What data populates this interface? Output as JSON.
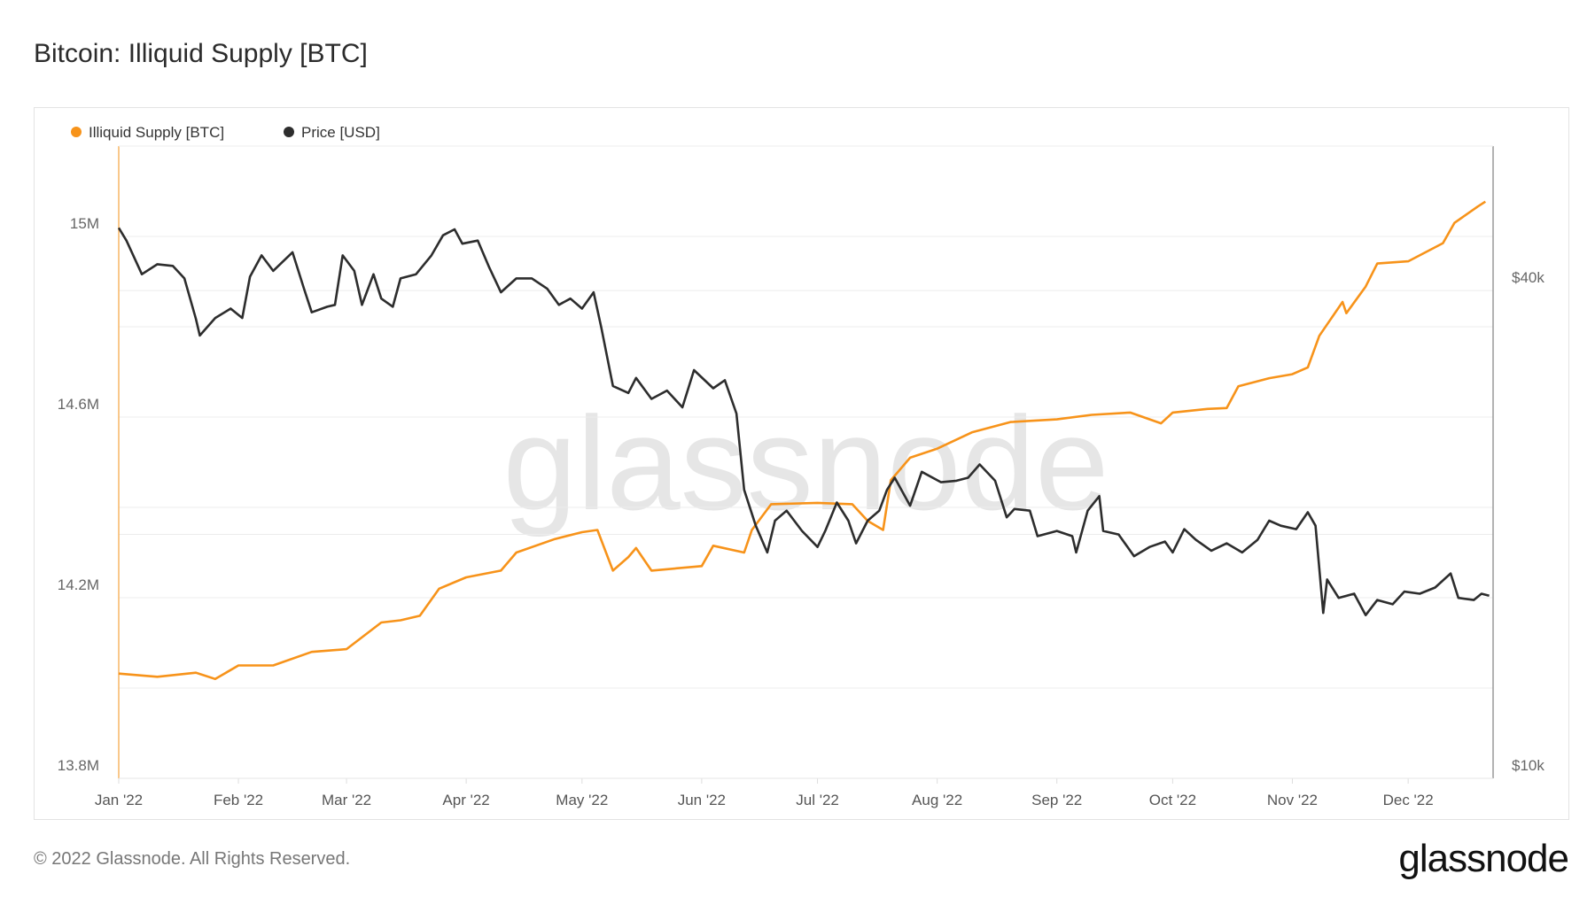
{
  "title": "Bitcoin: Illiquid Supply [BTC]",
  "footer": "© 2022 Glassnode. All Rights Reserved.",
  "logo": "glassnode",
  "watermark": "glassnode",
  "chart_data": {
    "type": "line",
    "title": "Bitcoin: Illiquid Supply [BTC]",
    "grid": true,
    "legend_placement": "top-left",
    "x_ticks": [
      "Jan '22",
      "Feb '22",
      "Mar '22",
      "Apr '22",
      "May '22",
      "Jun '22",
      "Jul '22",
      "Aug '22",
      "Sep '22",
      "Oct '22",
      "Nov '22",
      "Dec '22"
    ],
    "x_tick_dates": [
      "2022-01-01",
      "2022-02-01",
      "2022-03-01",
      "2022-04-01",
      "2022-05-01",
      "2022-06-01",
      "2022-07-01",
      "2022-08-01",
      "2022-09-01",
      "2022-10-01",
      "2022-11-01",
      "2022-12-01"
    ],
    "xlim": [
      "2022-01-01",
      "2022-12-23"
    ],
    "y_left": {
      "ticks": [
        "13.8M",
        "14.2M",
        "14.6M",
        "15M"
      ],
      "tick_values": [
        13800000,
        14200000,
        14600000,
        15000000
      ],
      "ylim": [
        13800000,
        15200000
      ],
      "grid_step": 200000,
      "scale": "linear"
    },
    "y_right": {
      "ticks": [
        "$10k",
        "$40k"
      ],
      "tick_values": [
        10000,
        40000
      ],
      "ylim": [
        10000,
        60300
      ],
      "grid_values": [
        20000,
        40000
      ],
      "scale": "log"
    },
    "series": [
      {
        "name": "Illiquid Supply [BTC]",
        "axis": "left",
        "color": "#f7931a",
        "points": [
          [
            "2022-01-01",
            14032000
          ],
          [
            "2022-01-11",
            14025000
          ],
          [
            "2022-01-21",
            14034000
          ],
          [
            "2022-01-26",
            14020000
          ],
          [
            "2022-02-01",
            14050000
          ],
          [
            "2022-02-10",
            14050000
          ],
          [
            "2022-02-20",
            14080000
          ],
          [
            "2022-03-01",
            14086000
          ],
          [
            "2022-03-10",
            14145000
          ],
          [
            "2022-03-15",
            14150000
          ],
          [
            "2022-03-20",
            14160000
          ],
          [
            "2022-03-25",
            14220000
          ],
          [
            "2022-04-01",
            14245000
          ],
          [
            "2022-04-10",
            14260000
          ],
          [
            "2022-04-14",
            14300000
          ],
          [
            "2022-04-24",
            14330000
          ],
          [
            "2022-05-01",
            14345000
          ],
          [
            "2022-05-05",
            14350000
          ],
          [
            "2022-05-09",
            14260000
          ],
          [
            "2022-05-13",
            14290000
          ],
          [
            "2022-05-15",
            14310000
          ],
          [
            "2022-05-19",
            14260000
          ],
          [
            "2022-06-01",
            14270000
          ],
          [
            "2022-06-04",
            14315000
          ],
          [
            "2022-06-12",
            14300000
          ],
          [
            "2022-06-14",
            14350000
          ],
          [
            "2022-06-19",
            14407000
          ],
          [
            "2022-07-01",
            14410000
          ],
          [
            "2022-07-10",
            14407000
          ],
          [
            "2022-07-14",
            14370000
          ],
          [
            "2022-07-18",
            14350000
          ],
          [
            "2022-07-20",
            14460000
          ],
          [
            "2022-07-25",
            14510000
          ],
          [
            "2022-08-01",
            14530000
          ],
          [
            "2022-08-10",
            14566000
          ],
          [
            "2022-08-20",
            14589000
          ],
          [
            "2022-09-01",
            14595000
          ],
          [
            "2022-09-10",
            14605000
          ],
          [
            "2022-09-20",
            14610000
          ],
          [
            "2022-09-28",
            14586000
          ],
          [
            "2022-10-01",
            14610000
          ],
          [
            "2022-10-10",
            14618000
          ],
          [
            "2022-10-15",
            14620000
          ],
          [
            "2022-10-18",
            14668000
          ],
          [
            "2022-10-26",
            14686000
          ],
          [
            "2022-11-01",
            14695000
          ],
          [
            "2022-11-05",
            14710000
          ],
          [
            "2022-11-08",
            14780000
          ],
          [
            "2022-11-14",
            14855000
          ],
          [
            "2022-11-15",
            14830000
          ],
          [
            "2022-11-20",
            14889000
          ],
          [
            "2022-11-23",
            14940000
          ],
          [
            "2022-12-01",
            14945000
          ],
          [
            "2022-12-10",
            14985000
          ],
          [
            "2022-12-13",
            15030000
          ],
          [
            "2022-12-19",
            15066000
          ],
          [
            "2022-12-21",
            15077000
          ]
        ]
      },
      {
        "name": "Price [USD]",
        "axis": "right",
        "color": "#2d2d2d",
        "points": [
          [
            "2022-01-01",
            47800
          ],
          [
            "2022-01-03",
            46100
          ],
          [
            "2022-01-07",
            41900
          ],
          [
            "2022-01-11",
            43100
          ],
          [
            "2022-01-15",
            42900
          ],
          [
            "2022-01-18",
            41400
          ],
          [
            "2022-01-21",
            36900
          ],
          [
            "2022-01-22",
            35200
          ],
          [
            "2022-01-26",
            37000
          ],
          [
            "2022-01-30",
            38000
          ],
          [
            "2022-02-02",
            37000
          ],
          [
            "2022-02-04",
            41600
          ],
          [
            "2022-02-07",
            44200
          ],
          [
            "2022-02-10",
            42300
          ],
          [
            "2022-02-15",
            44600
          ],
          [
            "2022-02-18",
            40200
          ],
          [
            "2022-02-20",
            37600
          ],
          [
            "2022-02-24",
            38200
          ],
          [
            "2022-02-26",
            38400
          ],
          [
            "2022-02-28",
            44200
          ],
          [
            "2022-03-03",
            42300
          ],
          [
            "2022-03-05",
            38400
          ],
          [
            "2022-03-08",
            41900
          ],
          [
            "2022-03-10",
            39100
          ],
          [
            "2022-03-13",
            38200
          ],
          [
            "2022-03-15",
            41400
          ],
          [
            "2022-03-19",
            41900
          ],
          [
            "2022-03-23",
            44200
          ],
          [
            "2022-03-26",
            46800
          ],
          [
            "2022-03-29",
            47600
          ],
          [
            "2022-03-31",
            45700
          ],
          [
            "2022-04-04",
            46100
          ],
          [
            "2022-04-07",
            42700
          ],
          [
            "2022-04-10",
            39800
          ],
          [
            "2022-04-14",
            41400
          ],
          [
            "2022-04-18",
            41400
          ],
          [
            "2022-04-22",
            40200
          ],
          [
            "2022-04-25",
            38400
          ],
          [
            "2022-04-28",
            39100
          ],
          [
            "2022-05-01",
            38000
          ],
          [
            "2022-05-04",
            39800
          ],
          [
            "2022-05-06",
            36000
          ],
          [
            "2022-05-09",
            30500
          ],
          [
            "2022-05-13",
            29900
          ],
          [
            "2022-05-15",
            31200
          ],
          [
            "2022-05-19",
            29400
          ],
          [
            "2022-05-23",
            30100
          ],
          [
            "2022-05-27",
            28700
          ],
          [
            "2022-05-30",
            31900
          ],
          [
            "2022-06-04",
            30300
          ],
          [
            "2022-06-07",
            31000
          ],
          [
            "2022-06-10",
            28200
          ],
          [
            "2022-06-12",
            22700
          ],
          [
            "2022-06-15",
            20500
          ],
          [
            "2022-06-18",
            19000
          ],
          [
            "2022-06-20",
            20800
          ],
          [
            "2022-06-23",
            21400
          ],
          [
            "2022-06-27",
            20200
          ],
          [
            "2022-07-01",
            19300
          ],
          [
            "2022-07-03",
            20200
          ],
          [
            "2022-07-06",
            21900
          ],
          [
            "2022-07-09",
            20800
          ],
          [
            "2022-07-11",
            19500
          ],
          [
            "2022-07-14",
            20800
          ],
          [
            "2022-07-17",
            21400
          ],
          [
            "2022-07-19",
            22700
          ],
          [
            "2022-07-21",
            23500
          ],
          [
            "2022-07-25",
            21700
          ],
          [
            "2022-07-28",
            23900
          ],
          [
            "2022-08-02",
            23200
          ],
          [
            "2022-08-06",
            23300
          ],
          [
            "2022-08-09",
            23500
          ],
          [
            "2022-08-12",
            24400
          ],
          [
            "2022-08-16",
            23300
          ],
          [
            "2022-08-19",
            21000
          ],
          [
            "2022-08-21",
            21500
          ],
          [
            "2022-08-25",
            21400
          ],
          [
            "2022-08-27",
            19900
          ],
          [
            "2022-09-01",
            20200
          ],
          [
            "2022-09-05",
            19900
          ],
          [
            "2022-09-06",
            19000
          ],
          [
            "2022-09-09",
            21400
          ],
          [
            "2022-09-12",
            22300
          ],
          [
            "2022-09-13",
            20200
          ],
          [
            "2022-09-17",
            20000
          ],
          [
            "2022-09-21",
            18800
          ],
          [
            "2022-09-25",
            19300
          ],
          [
            "2022-09-29",
            19600
          ],
          [
            "2022-10-01",
            19000
          ],
          [
            "2022-10-04",
            20300
          ],
          [
            "2022-10-07",
            19700
          ],
          [
            "2022-10-11",
            19100
          ],
          [
            "2022-10-15",
            19500
          ],
          [
            "2022-10-19",
            19000
          ],
          [
            "2022-10-23",
            19700
          ],
          [
            "2022-10-26",
            20800
          ],
          [
            "2022-10-29",
            20500
          ],
          [
            "2022-11-02",
            20300
          ],
          [
            "2022-11-05",
            21300
          ],
          [
            "2022-11-07",
            20500
          ],
          [
            "2022-11-09",
            16000
          ],
          [
            "2022-11-10",
            17600
          ],
          [
            "2022-11-13",
            16700
          ],
          [
            "2022-11-17",
            16900
          ],
          [
            "2022-11-20",
            15900
          ],
          [
            "2022-11-23",
            16600
          ],
          [
            "2022-11-27",
            16400
          ],
          [
            "2022-11-30",
            17000
          ],
          [
            "2022-12-04",
            16900
          ],
          [
            "2022-12-08",
            17200
          ],
          [
            "2022-12-12",
            17900
          ],
          [
            "2022-12-14",
            16700
          ],
          [
            "2022-12-18",
            16600
          ],
          [
            "2022-12-20",
            16900
          ],
          [
            "2022-12-22",
            16800
          ]
        ]
      }
    ]
  }
}
